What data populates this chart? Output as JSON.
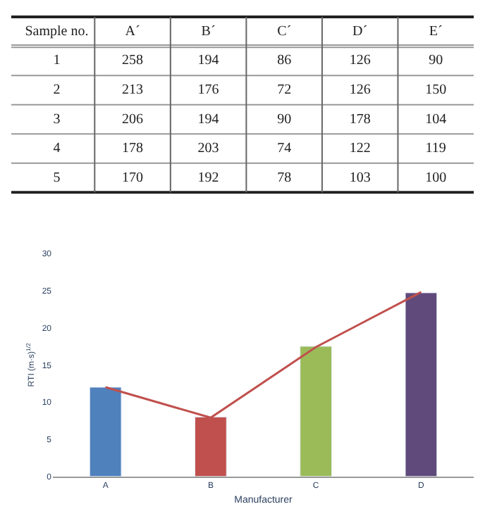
{
  "chart_data": [
    {
      "type": "heatmap",
      "data_labels": true,
      "grid": true,
      "ylabel": "Sample no.",
      "categories": [
        "A´",
        "B´",
        "C´",
        "D´",
        "E´"
      ],
      "y_categories": [
        "1",
        "2",
        "3",
        "4",
        "5"
      ],
      "cells": [
        [
          258,
          194,
          86,
          126,
          90
        ],
        [
          213,
          176,
          72,
          126,
          150
        ],
        [
          206,
          194,
          90,
          178,
          104
        ],
        [
          178,
          203,
          74,
          122,
          119
        ],
        [
          170,
          192,
          78,
          103,
          100
        ]
      ]
    },
    {
      "type": "bar",
      "xlabel": "Manufacturer",
      "ylabel": "RTI (m·s)$^{1/2}$",
      "categories": [
        "A",
        "B",
        "C",
        "D"
      ],
      "ylim": [
        0,
        30
      ],
      "yticks": [
        0,
        5,
        10,
        15,
        20,
        25,
        30
      ],
      "series": [
        {
          "type": "bar",
          "colors": [
            "#4f81bd",
            "#c0504d",
            "#9bbb59",
            "#604a7b"
          ],
          "values": [
            12,
            8,
            17.5,
            24.7
          ]
        },
        {
          "type": "line",
          "color": "#c0504d",
          "values": [
            12,
            7.9,
            17.4,
            24.8
          ]
        }
      ]
    }
  ]
}
